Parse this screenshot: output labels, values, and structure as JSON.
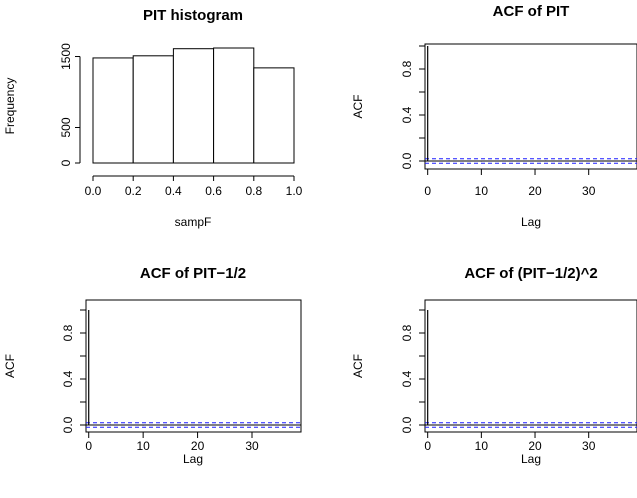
{
  "chart_data": [
    {
      "type": "bar",
      "title": "PIT histogram",
      "xlabel": "sampF",
      "ylabel": "Frequency",
      "bins": [
        [
          0.0,
          0.2
        ],
        [
          0.2,
          0.4
        ],
        [
          0.4,
          0.6
        ],
        [
          0.6,
          0.8
        ],
        [
          0.8,
          1.0
        ]
      ],
      "values": [
        1480,
        1510,
        1610,
        1620,
        1340
      ],
      "xlim": [
        0,
        1
      ],
      "ylim": [
        0,
        1620
      ],
      "xticks": [
        "0.0",
        "0.2",
        "0.4",
        "0.6",
        "0.8",
        "1.0"
      ],
      "yticks": [
        "0",
        "500",
        "1500"
      ],
      "ytick_values": [
        0,
        500,
        1500
      ]
    },
    {
      "type": "bar",
      "title": "ACF of PIT",
      "xlabel": "Lag",
      "ylabel": "ACF",
      "lags": [
        0,
        1,
        2,
        3,
        4,
        5,
        6,
        7,
        8,
        9,
        10,
        11,
        12,
        13,
        14,
        15,
        16,
        17,
        18,
        19,
        20,
        21,
        22,
        23,
        24,
        25,
        26,
        27,
        28,
        29,
        30,
        31,
        32,
        33,
        34,
        35,
        36,
        37,
        38
      ],
      "values": [
        1.0,
        0.003,
        -0.004,
        0.002,
        0.005,
        -0.003,
        0.001,
        -0.002,
        0.004,
        0.0,
        -0.005,
        0.003,
        0.002,
        -0.001,
        0.004,
        -0.003,
        0.001,
        0.002,
        -0.004,
        0.003,
        0.0,
        -0.002,
        0.005,
        0.001,
        -0.003,
        0.002,
        0.004,
        -0.001,
        0.003,
        -0.004,
        0.002,
        0.001,
        -0.002,
        0.003,
        0.0,
        -0.003,
        0.002,
        0.001,
        -0.002
      ],
      "ci": 0.02,
      "ylim": [
        0,
        1
      ],
      "xticks": [
        "0",
        "10",
        "20",
        "30"
      ],
      "xtick_values": [
        0,
        10,
        20,
        30
      ],
      "yticks": [
        "0.0",
        "0.4",
        "0.8"
      ],
      "ytick_values": [
        0,
        0.4,
        0.8
      ]
    },
    {
      "type": "bar",
      "title": "ACF of PIT−1/2",
      "xlabel": "Lag",
      "ylabel": "ACF",
      "lags": [
        0,
        1,
        2,
        3,
        4,
        5,
        6,
        7,
        8,
        9,
        10,
        11,
        12,
        13,
        14,
        15,
        16,
        17,
        18,
        19,
        20,
        21,
        22,
        23,
        24,
        25,
        26,
        27,
        28,
        29,
        30,
        31,
        32,
        33,
        34,
        35,
        36,
        37,
        38
      ],
      "values": [
        1.0,
        0.003,
        -0.004,
        0.002,
        0.005,
        -0.003,
        0.001,
        -0.002,
        0.004,
        0.0,
        -0.005,
        0.003,
        0.002,
        -0.001,
        0.004,
        -0.003,
        0.001,
        0.002,
        -0.004,
        0.003,
        0.0,
        -0.002,
        0.005,
        0.001,
        -0.003,
        0.002,
        0.004,
        -0.001,
        0.003,
        -0.004,
        0.002,
        0.001,
        -0.002,
        0.003,
        0.0,
        -0.003,
        0.002,
        0.001,
        -0.002
      ],
      "ci": 0.02,
      "ylim": [
        0,
        1
      ],
      "xticks": [
        "0",
        "10",
        "20",
        "30"
      ],
      "xtick_values": [
        0,
        10,
        20,
        30
      ],
      "yticks": [
        "0.0",
        "0.4",
        "0.8"
      ],
      "ytick_values": [
        0,
        0.4,
        0.8
      ]
    },
    {
      "type": "bar",
      "title": "ACF of (PIT−1/2)^2",
      "xlabel": "Lag",
      "ylabel": "ACF",
      "lags": [
        0,
        1,
        2,
        3,
        4,
        5,
        6,
        7,
        8,
        9,
        10,
        11,
        12,
        13,
        14,
        15,
        16,
        17,
        18,
        19,
        20,
        21,
        22,
        23,
        24,
        25,
        26,
        27,
        28,
        29,
        30,
        31,
        32,
        33,
        34,
        35,
        36,
        37,
        38
      ],
      "values": [
        1.0,
        0.004,
        -0.002,
        0.003,
        -0.004,
        0.002,
        0.001,
        -0.003,
        0.005,
        -0.001,
        0.002,
        -0.004,
        0.003,
        0.001,
        -0.002,
        0.004,
        -0.003,
        0.002,
        0.0,
        -0.001,
        0.003,
        -0.002,
        0.004,
        0.001,
        -0.003,
        0.002,
        -0.001,
        0.003,
        0.002,
        -0.004,
        0.001,
        0.003,
        -0.002,
        0.002,
        -0.001,
        0.003,
        -0.002,
        0.001,
        0.002
      ],
      "ci": 0.02,
      "ylim": [
        0,
        1
      ],
      "xticks": [
        "0",
        "10",
        "20",
        "30"
      ],
      "xtick_values": [
        0,
        10,
        20,
        30
      ],
      "yticks": [
        "0.0",
        "0.4",
        "0.8"
      ],
      "ytick_values": [
        0,
        0.4,
        0.8
      ]
    }
  ],
  "colors": {
    "axis": "#000000",
    "ci": "#1f1fff",
    "bar_fill": "#ffffff"
  }
}
